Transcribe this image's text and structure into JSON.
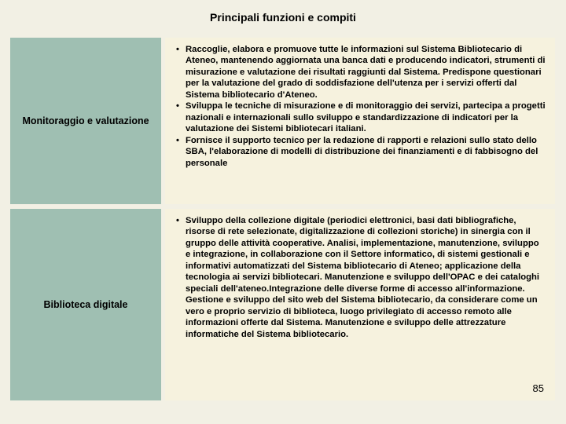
{
  "title": "Principali funzioni e compiti",
  "rows": [
    {
      "label": "Monitoraggio e valutazione",
      "bullets": [
        "Raccoglie, elabora e promuove tutte le informazioni sul Sistema Bibliotecario di Ateneo, mantenendo aggiornata una banca dati e producendo indicatori, strumenti di misurazione e valutazione dei risultati raggiunti dal Sistema. Predispone questionari per la valutazione del grado di soddisfazione dell'utenza per i servizi offerti dal Sistema bibliotecario d'Ateneo.",
        "Sviluppa le tecniche di misurazione e di monitoraggio dei servizi, partecipa a progetti nazionali e internazionali sullo sviluppo e standardizzazione di indicatori per la valutazione dei Sistemi bibliotecari italiani.",
        "Fornisce il supporto tecnico per la redazione di rapporti e relazioni sullo stato dello SBA, l'elaborazione di modelli di distribuzione dei finanziamenti e di fabbisogno del personale"
      ]
    },
    {
      "label": "Biblioteca digitale",
      "bullets": [
        "Sviluppo della collezione digitale (periodici elettronici, basi dati bibliografiche, risorse di rete selezionate, digitalizzazione di collezioni storiche) in sinergia con il gruppo delle attività cooperative. Analisi, implementazione, manutenzione, sviluppo e integrazione, in collaborazione con il Settore informatico, di sistemi gestionali e informativi automatizzati del Sistema bibliotecario di Ateneo; applicazione della tecnologia ai servizi bibliotecari. Manutenzione e sviluppo dell'OPAC e dei cataloghi speciali dell'ateneo.Integrazione delle diverse forme di accesso all'informazione. Gestione e sviluppo del sito web del Sistema bibliotecario, da considerare come un vero e proprio servizio di biblioteca, luogo privilegiato di accesso remoto alle informazioni offerte dal Sistema. Manutenzione e sviluppo delle attrezzature informatiche del Sistema bibliotecario."
      ]
    }
  ],
  "page_number": "85",
  "colors": {
    "page_bg": "#f2f0e4",
    "left_cell_bg": "#9fbfb2",
    "right_cell_bg": "#f6f2de"
  }
}
